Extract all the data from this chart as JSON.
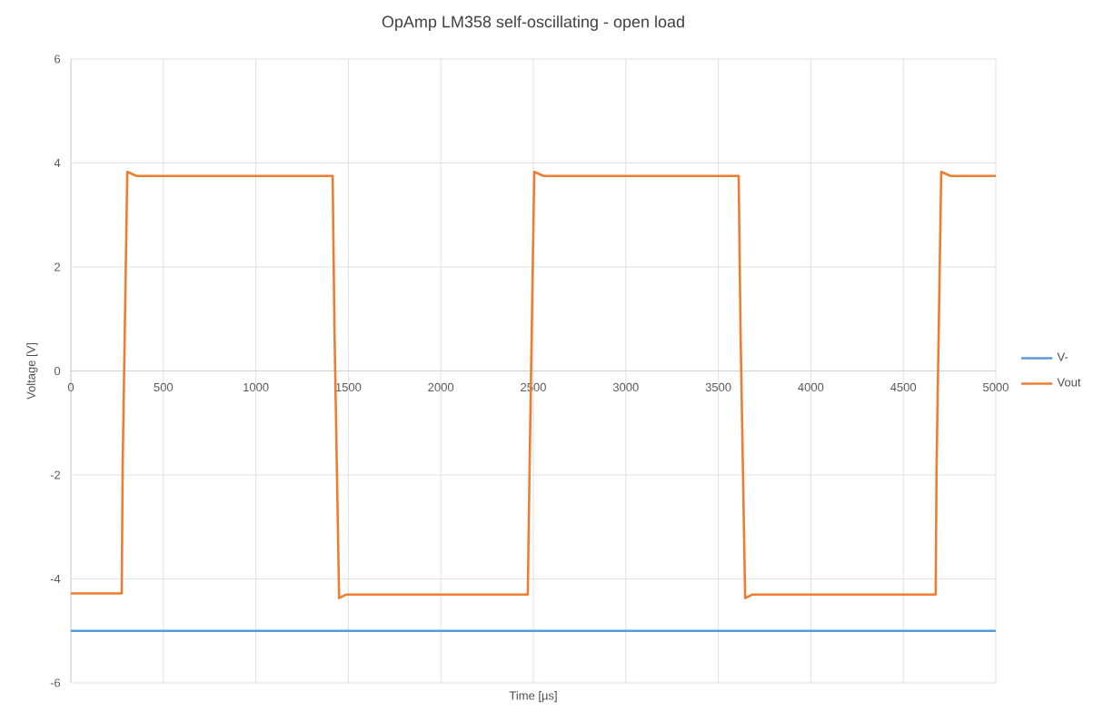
{
  "chart_data": {
    "type": "line",
    "title": "OpAmp LM358 self-oscillating - open load",
    "xlabel": "Time [µs]",
    "ylabel": "Voltage [V]",
    "xlim": [
      0,
      5000
    ],
    "ylim": [
      -6,
      6
    ],
    "xticks": [
      0,
      500,
      1000,
      1500,
      2000,
      2500,
      3000,
      3500,
      4000,
      4500,
      5000
    ],
    "yticks": [
      -6,
      -4,
      -2,
      0,
      2,
      4,
      6
    ],
    "grid": true,
    "legend": "right",
    "marker": "none",
    "line_style": "solid",
    "series": [
      {
        "name": "V-",
        "color": "#5b9bd5",
        "x": [
          0,
          5000
        ],
        "values": [
          -5.0,
          -5.0
        ]
      },
      {
        "name": "Vout",
        "color": "#ed7d31",
        "x": [
          0,
          275,
          280,
          305,
          354,
          1415,
          1425,
          1450,
          1490,
          2470,
          2480,
          2505,
          2555,
          3610,
          3620,
          3645,
          3685,
          4675,
          4680,
          4705,
          4755,
          5000
        ],
        "values": [
          -4.28,
          -4.28,
          -1.8,
          3.83,
          3.75,
          3.75,
          0.8,
          -4.37,
          -4.3,
          -4.3,
          -1.8,
          3.83,
          3.75,
          3.75,
          0.8,
          -4.37,
          -4.3,
          -4.3,
          -1.8,
          3.83,
          3.75,
          3.75
        ]
      }
    ]
  }
}
